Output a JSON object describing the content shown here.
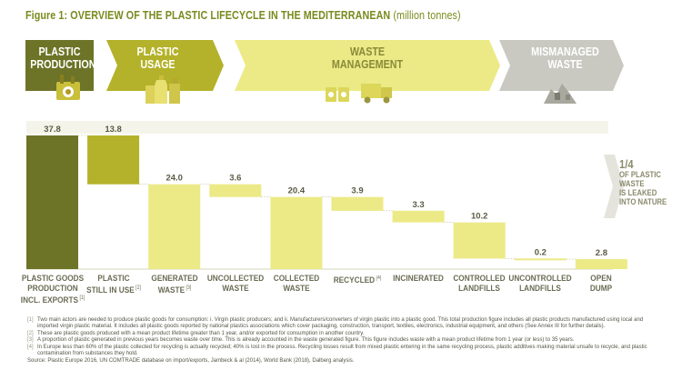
{
  "figure": {
    "title": "Figure 1: OVERVIEW OF THE PLASTIC LIFECYCLE IN THE MEDITERRANEAN",
    "unit": "(million tonnes)"
  },
  "stages": [
    {
      "label_line1": "PLASTIC",
      "label_line2": "PRODUCTION",
      "color": "#6d7427"
    },
    {
      "label_line1": "PLASTIC",
      "label_line2": "USAGE",
      "color": "#b3b22a"
    },
    {
      "label_line1": "WASTE",
      "label_line2": "MANAGEMENT",
      "color": "#ecea86"
    },
    {
      "label_line1": "MISMANAGED",
      "label_line2": "WASTE",
      "color": "#c9c9c2"
    }
  ],
  "icons": [
    "factory-icon",
    "plastic-bottles-icon",
    "recycling-bins-icon",
    "garbage-truck-icon",
    "waste-pile-icon"
  ],
  "chart_data": {
    "type": "bar",
    "subtype": "waterfall",
    "categories": [
      {
        "line1": "PLASTIC GOODS",
        "line2": "PRODUCTION",
        "line3": "INCL. EXPORTS",
        "mark": "[1]"
      },
      {
        "line1": "PLASTIC",
        "line2": "STILL IN USE",
        "line3": "",
        "mark": "[2]"
      },
      {
        "line1": "GENERATED",
        "line2": "WASTE",
        "line3": "",
        "mark": "[3]"
      },
      {
        "line1": "UNCOLLECTED",
        "line2": "WASTE",
        "line3": "",
        "mark": ""
      },
      {
        "line1": "COLLECTED",
        "line2": "WASTE",
        "line3": "",
        "mark": ""
      },
      {
        "line1": "RECYCLED",
        "line2": "",
        "line3": "",
        "mark": "[4]"
      },
      {
        "line1": "INCINERATED",
        "line2": "",
        "line3": "",
        "mark": ""
      },
      {
        "line1": "CONTROLLED",
        "line2": "LANDFILLS",
        "line3": "",
        "mark": ""
      },
      {
        "line1": "UNCONTROLLED",
        "line2": "LANDFILLS",
        "line3": "",
        "mark": ""
      },
      {
        "line1": "OPEN",
        "line2": "DUMP",
        "line3": "",
        "mark": ""
      }
    ],
    "values": [
      37.8,
      13.8,
      24.0,
      3.6,
      20.4,
      3.9,
      3.3,
      10.2,
      0.2,
      2.8
    ],
    "value_labels": [
      "37.8",
      "13.8",
      "24.0",
      "3.6",
      "20.4",
      "3.9",
      "3.3",
      "10.2",
      "0.2",
      "2.8"
    ],
    "bar_top": [
      37.8,
      37.8,
      24.0,
      24.0,
      20.4,
      20.4,
      16.5,
      13.2,
      3.0,
      2.8
    ],
    "bar_bottom": [
      0,
      24.0,
      0,
      20.4,
      0,
      16.5,
      13.2,
      3.0,
      2.8,
      0
    ],
    "stage_of_bar": [
      0,
      1,
      2,
      3,
      2,
      2,
      2,
      2,
      3,
      3
    ],
    "ylim": [
      0,
      37.8
    ],
    "grid": false,
    "annotation": {
      "line1": "1/4",
      "line2": "OF PLASTIC",
      "line3": "WASTE",
      "line4": "IS LEAKED",
      "line5": "INTO NATURE"
    }
  },
  "footnotes": [
    {
      "mark": "[1]",
      "text": "Two main actors are needed to produce plastic goods for consumption: i. Virgin plastic producers; and ii. Manufacturers/converters of virgin plastic into a plastic good. This total production figure includes all plastic products manufactured using local and imported virgin plastic material. It includes all plastic goods reported by national plastics associations which cover packaging, construction, transport, textiles, electronics, industrial equipment, and others (See Annex III for further details)."
    },
    {
      "mark": "[2]",
      "text": "These are plastic goods produced with a mean product lifetime greater than 1 year, and/or exported for consumption in another country."
    },
    {
      "mark": "[3]",
      "text": "A proportion of plastic generated in previous years becomes waste over time. This is already accounted in the waste generated figure. This figure includes waste with a mean product lifetime from 1 year (or less) to 35 years."
    },
    {
      "mark": "[4]",
      "text": "In Europe less than 60% of the plastic collected for recycling is actually recycled; 40% is lost in the process. Recycling losses result from mixed plastic entering in the same recycling process, plastic additives making material unsafe to recycle, and plastic contamination from substances they hold."
    }
  ],
  "source": "Source: Plastic Europe 2016, UN COMTRADE database on import/exports, Jambeck & al (2014), World Bank (2018), Dalberg analysis."
}
